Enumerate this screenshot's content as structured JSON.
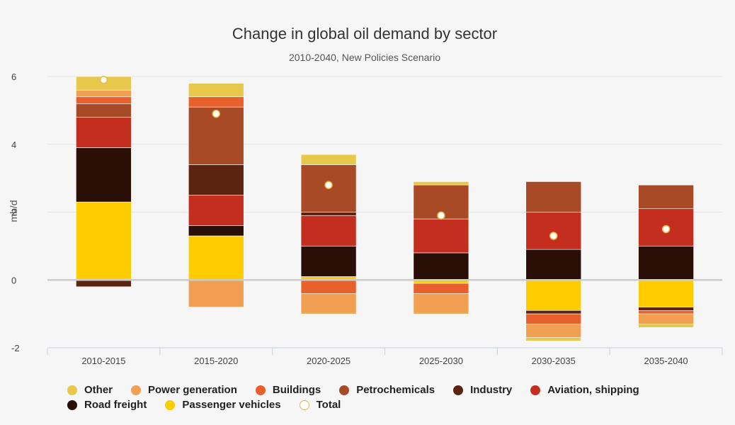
{
  "chart_data": {
    "type": "bar",
    "stacked": true,
    "title": "Change in global oil demand by sector",
    "subtitle": "2010-2040, New Policies Scenario",
    "ylabel": "mb/d",
    "xlabel": "",
    "ylim": [
      -2,
      6
    ],
    "yticks": [
      6,
      4,
      2,
      0,
      -2
    ],
    "categories": [
      "2010-2015",
      "2015-2020",
      "2020-2025",
      "2025-2030",
      "2030-2035",
      "2035-2040"
    ],
    "series": [
      {
        "name": "Passenger vehicles",
        "color": "#ffcc00",
        "values": [
          2.3,
          1.3,
          0.1,
          -0.1,
          -0.9,
          -0.8
        ]
      },
      {
        "name": "Road freight",
        "color": "#2a0f06",
        "values": [
          1.6,
          0.3,
          0.9,
          0.8,
          0.9,
          1.0
        ]
      },
      {
        "name": "Aviation, shipping",
        "color": "#c42e1f",
        "values": [
          0.9,
          0.9,
          0.9,
          1.0,
          1.1,
          1.1
        ]
      },
      {
        "name": "Industry",
        "color": "#5c2410",
        "values": [
          -0.2,
          0.9,
          0.1,
          0.0,
          -0.1,
          -0.1
        ]
      },
      {
        "name": "Petrochemicals",
        "color": "#a84a26",
        "values": [
          0.4,
          1.7,
          1.4,
          1.0,
          0.9,
          0.7
        ]
      },
      {
        "name": "Buildings",
        "color": "#e8602c",
        "values": [
          0.2,
          0.3,
          -0.4,
          -0.3,
          -0.3,
          -0.1
        ]
      },
      {
        "name": "Power generation",
        "color": "#f0a050",
        "values": [
          0.2,
          -0.8,
          -0.6,
          -0.6,
          -0.4,
          -0.3
        ]
      },
      {
        "name": "Other",
        "color": "#e8c84a",
        "values": [
          0.4,
          0.4,
          0.3,
          0.1,
          -0.1,
          -0.1
        ]
      }
    ],
    "total": {
      "name": "Total",
      "values": [
        5.9,
        4.9,
        2.8,
        1.9,
        1.3,
        1.5
      ]
    },
    "legend": [
      {
        "name": "Other",
        "color": "#e8c84a",
        "style": "dot"
      },
      {
        "name": "Power generation",
        "color": "#f0a050",
        "style": "dot"
      },
      {
        "name": "Buildings",
        "color": "#e8602c",
        "style": "dot"
      },
      {
        "name": "Petrochemicals",
        "color": "#a84a26",
        "style": "dot"
      },
      {
        "name": "Industry",
        "color": "#5c2410",
        "style": "dot"
      },
      {
        "name": "Aviation, shipping",
        "color": "#c42e1f",
        "style": "dot"
      },
      {
        "name": "Road freight",
        "color": "#2a0f06",
        "style": "dot"
      },
      {
        "name": "Passenger vehicles",
        "color": "#ffcc00",
        "style": "dot"
      },
      {
        "name": "Total",
        "color": "#e8b84a",
        "style": "hollow"
      }
    ],
    "legend_position": "bottom-left",
    "grid": true
  }
}
